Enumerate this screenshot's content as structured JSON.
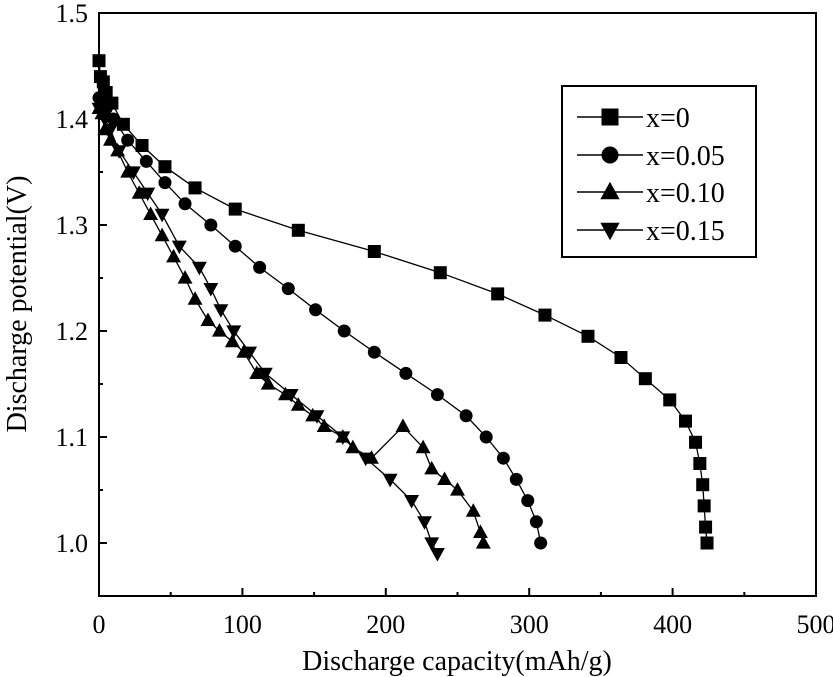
{
  "chart_data": {
    "type": "line",
    "title": "",
    "xlabel": "Discharge capacity(mAh/g)",
    "ylabel": "Discharge potential(V)",
    "xlim": [
      0,
      500
    ],
    "ylim": [
      0.95,
      1.5
    ],
    "xticks": [
      0,
      100,
      200,
      300,
      400,
      500
    ],
    "yticks": [
      1.0,
      1.1,
      1.2,
      1.3,
      1.4,
      1.5
    ],
    "xtick_labels": [
      "0",
      "100",
      "200",
      "300",
      "400",
      "500"
    ],
    "ytick_labels": [
      "1.0",
      "1.1",
      "1.2",
      "1.3",
      "1.4",
      "1.5"
    ],
    "grid": false,
    "legend_position": "top-right",
    "line_color": "#000000",
    "series": [
      {
        "name": "x=0",
        "marker": "square",
        "x": [
          0,
          1,
          3,
          5,
          9,
          17,
          30,
          46,
          67,
          95,
          139,
          192,
          238,
          278,
          311,
          341,
          364,
          381,
          398,
          409,
          416,
          419,
          421,
          422,
          423,
          424
        ],
        "y": [
          1.455,
          1.44,
          1.435,
          1.425,
          1.415,
          1.395,
          1.375,
          1.355,
          1.335,
          1.315,
          1.295,
          1.275,
          1.255,
          1.235,
          1.215,
          1.195,
          1.175,
          1.155,
          1.135,
          1.115,
          1.095,
          1.075,
          1.055,
          1.035,
          1.015,
          1.0
        ]
      },
      {
        "name": "x=0.05",
        "marker": "circle",
        "x": [
          0,
          2,
          5,
          10,
          20,
          33,
          46,
          60,
          78,
          95,
          112,
          132,
          151,
          171,
          192,
          214,
          236,
          256,
          270,
          282,
          291,
          299,
          305,
          308
        ],
        "y": [
          1.42,
          1.415,
          1.41,
          1.4,
          1.38,
          1.36,
          1.34,
          1.32,
          1.3,
          1.28,
          1.26,
          1.24,
          1.22,
          1.2,
          1.18,
          1.16,
          1.14,
          1.12,
          1.1,
          1.08,
          1.06,
          1.04,
          1.02,
          1.0
        ]
      },
      {
        "name": "x=0.10",
        "marker": "triangle-up",
        "x": [
          0,
          2,
          4,
          8,
          13,
          20,
          28,
          36,
          44,
          52,
          60,
          67,
          76,
          84,
          93,
          101,
          110,
          118,
          130,
          139,
          149,
          157,
          170,
          177,
          190,
          212,
          226,
          232,
          241,
          250,
          261,
          266,
          268
        ],
        "y": [
          1.41,
          1.405,
          1.39,
          1.38,
          1.37,
          1.35,
          1.33,
          1.31,
          1.29,
          1.27,
          1.25,
          1.23,
          1.21,
          1.2,
          1.19,
          1.18,
          1.16,
          1.15,
          1.14,
          1.13,
          1.12,
          1.11,
          1.1,
          1.09,
          1.08,
          1.11,
          1.09,
          1.07,
          1.06,
          1.05,
          1.03,
          1.01,
          1.0
        ]
      },
      {
        "name": "x=0.15",
        "marker": "triangle-down",
        "x": [
          0,
          2,
          4,
          8,
          14,
          24,
          34,
          44,
          56,
          70,
          78,
          85,
          94,
          105,
          116,
          134,
          152,
          170,
          186,
          203,
          218,
          227,
          232,
          236
        ],
        "y": [
          1.41,
          1.405,
          1.4,
          1.39,
          1.37,
          1.35,
          1.33,
          1.31,
          1.28,
          1.26,
          1.24,
          1.22,
          1.2,
          1.18,
          1.16,
          1.14,
          1.12,
          1.1,
          1.08,
          1.06,
          1.04,
          1.02,
          1.0,
          0.99
        ]
      }
    ]
  }
}
